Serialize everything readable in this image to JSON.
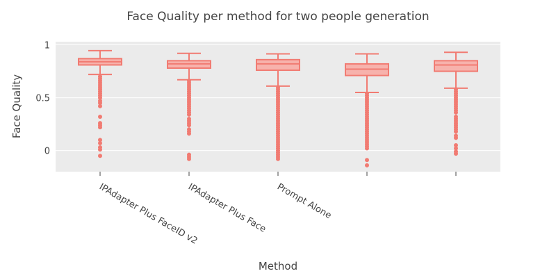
{
  "chart_data": {
    "type": "box",
    "title": "Face Quality per method for two people generation",
    "xlabel": "Method",
    "ylabel": "Face Quality",
    "ylim": [
      -0.2,
      1.03
    ],
    "yticks": [
      0,
      0.5,
      1
    ],
    "ytick_labels": [
      "0",
      "0.5",
      "1"
    ],
    "categories": [
      "IPAdapter Plus FaceID v2",
      "IPAdapter Plus Face",
      "Prompt Alone",
      "",
      ""
    ],
    "grid": true,
    "legend": "none",
    "colors": {
      "box_stroke": "#F17B72",
      "box_fill": "#F7B2AC",
      "outlier": "#F17B72",
      "plot_bg": "#EBEBEB",
      "grid": "#FFFFFF",
      "text": "#444444"
    },
    "series": [
      {
        "boxes": [
          {
            "lower_fence": 0.72,
            "q1": 0.81,
            "median": 0.84,
            "q3": 0.87,
            "upper_fence": 0.945,
            "outliers": [
              0.7,
              0.68,
              0.66,
              0.64,
              0.62,
              0.6,
              0.58,
              0.56,
              0.54,
              0.52,
              0.5,
              0.47,
              0.45,
              0.42,
              0.32,
              0.26,
              0.24,
              0.22,
              0.1,
              0.07,
              0.03,
              0.01,
              -0.05
            ]
          },
          {
            "lower_fence": 0.67,
            "q1": 0.78,
            "median": 0.82,
            "q3": 0.85,
            "upper_fence": 0.92,
            "outliers": [
              0.66,
              0.64,
              0.62,
              0.6,
              0.58,
              0.56,
              0.54,
              0.52,
              0.5,
              0.48,
              0.46,
              0.44,
              0.42,
              0.4,
              0.38,
              0.36,
              0.34,
              0.3,
              0.28,
              0.26,
              0.24,
              0.2,
              0.18,
              0.16,
              -0.04,
              -0.06,
              -0.08
            ]
          },
          {
            "lower_fence": 0.61,
            "q1": 0.76,
            "median": 0.82,
            "q3": 0.86,
            "upper_fence": 0.915,
            "outliers": [
              0.6,
              0.58,
              0.56,
              0.54,
              0.52,
              0.5,
              0.48,
              0.46,
              0.44,
              0.42,
              0.4,
              0.38,
              0.36,
              0.34,
              0.32,
              0.3,
              0.28,
              0.26,
              0.24,
              0.22,
              0.2,
              0.18,
              0.16,
              0.14,
              0.12,
              0.1,
              0.08,
              0.06,
              0.04,
              0.02,
              0.0,
              -0.02,
              -0.04,
              -0.06,
              -0.08
            ]
          },
          {
            "lower_fence": 0.55,
            "q1": 0.71,
            "median": 0.77,
            "q3": 0.82,
            "upper_fence": 0.915,
            "outliers": [
              0.54,
              0.52,
              0.5,
              0.48,
              0.46,
              0.44,
              0.42,
              0.4,
              0.38,
              0.36,
              0.34,
              0.32,
              0.3,
              0.28,
              0.26,
              0.24,
              0.22,
              0.2,
              0.18,
              0.16,
              0.14,
              0.12,
              0.1,
              0.08,
              0.06,
              0.04,
              0.02,
              -0.09,
              -0.14
            ]
          },
          {
            "lower_fence": 0.59,
            "q1": 0.75,
            "median": 0.81,
            "q3": 0.85,
            "upper_fence": 0.93,
            "outliers": [
              0.58,
              0.56,
              0.54,
              0.52,
              0.5,
              0.48,
              0.46,
              0.44,
              0.42,
              0.4,
              0.38,
              0.36,
              0.32,
              0.3,
              0.28,
              0.26,
              0.24,
              0.22,
              0.2,
              0.18,
              0.14,
              0.12,
              0.05,
              0.02,
              -0.01,
              -0.03
            ]
          }
        ]
      }
    ]
  }
}
